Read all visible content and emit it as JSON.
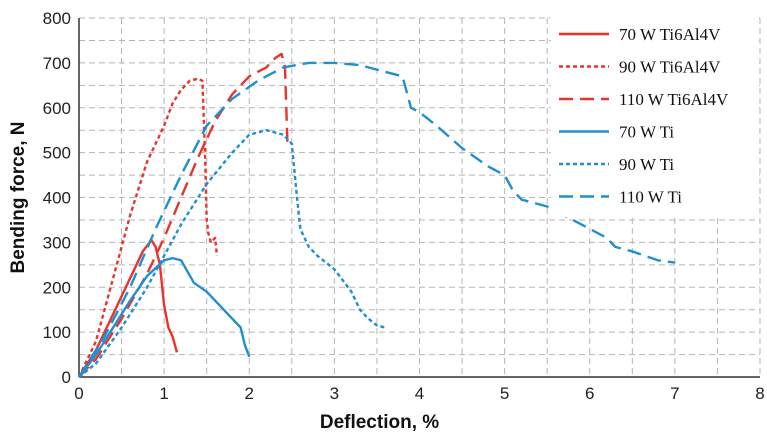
{
  "chart_data": {
    "type": "line",
    "title": "",
    "xlabel": "Deflection, %",
    "ylabel": "Bending force, N",
    "xlim": [
      0,
      8
    ],
    "ylim": [
      0,
      800
    ],
    "xticks": [
      "0",
      "1",
      "2",
      "3",
      "4",
      "5",
      "6",
      "7",
      "8"
    ],
    "yticks": [
      "0",
      "100",
      "200",
      "300",
      "400",
      "500",
      "600",
      "700",
      "800"
    ],
    "grid": true,
    "legend_position": "top-right",
    "series": [
      {
        "name": "70 W Ti6Al4V",
        "color": "#e8342c",
        "dash": "solid",
        "x": [
          0,
          0.2,
          0.4,
          0.6,
          0.75,
          0.85,
          0.9,
          0.95,
          1.0,
          1.05,
          1.1,
          1.15
        ],
        "y": [
          0,
          60,
          140,
          220,
          280,
          305,
          290,
          250,
          160,
          110,
          90,
          55
        ]
      },
      {
        "name": "90 W Ti6Al4V",
        "color": "#e8342c",
        "dash": "short",
        "x": [
          0,
          0.2,
          0.4,
          0.6,
          0.8,
          0.9,
          1.0,
          1.1,
          1.2,
          1.3,
          1.4,
          1.45,
          1.48,
          1.5,
          1.52,
          1.55,
          1.6,
          1.62
        ],
        "y": [
          0,
          80,
          220,
          360,
          480,
          520,
          560,
          610,
          640,
          660,
          665,
          660,
          500,
          350,
          320,
          300,
          310,
          270
        ]
      },
      {
        "name": "110 W Ti6Al4V",
        "color": "#e8342c",
        "dash": "long",
        "x": [
          0,
          0.2,
          0.5,
          0.8,
          1.0,
          1.2,
          1.4,
          1.6,
          1.8,
          2.0,
          2.2,
          2.3,
          2.38,
          2.42,
          2.45
        ],
        "y": [
          0,
          40,
          130,
          230,
          310,
          400,
          490,
          570,
          630,
          670,
          690,
          710,
          720,
          690,
          510
        ]
      },
      {
        "name": "70 W Ti",
        "color": "#1f8fd1",
        "dash": "solid",
        "x": [
          0,
          0.2,
          0.4,
          0.6,
          0.8,
          1.0,
          1.1,
          1.2,
          1.35,
          1.5,
          1.7,
          1.9,
          1.95,
          2.0
        ],
        "y": [
          0,
          50,
          110,
          170,
          225,
          260,
          265,
          260,
          210,
          190,
          150,
          110,
          70,
          45
        ]
      },
      {
        "name": "90 W Ti",
        "color": "#1f8fd1",
        "dash": "short",
        "x": [
          0,
          0.2,
          0.5,
          0.8,
          1.0,
          1.2,
          1.5,
          1.8,
          2.0,
          2.2,
          2.4,
          2.5,
          2.55,
          2.6,
          2.7,
          2.8,
          3.0,
          3.2,
          3.3,
          3.4,
          3.5,
          3.6
        ],
        "y": [
          0,
          30,
          110,
          200,
          270,
          340,
          430,
          500,
          540,
          550,
          540,
          520,
          420,
          330,
          290,
          270,
          240,
          190,
          150,
          130,
          115,
          110
        ]
      },
      {
        "name": "110 W Ti",
        "color": "#1f8fd1",
        "dash": "long",
        "x": [
          0,
          0.3,
          0.6,
          0.9,
          1.2,
          1.5,
          1.8,
          2.1,
          2.4,
          2.7,
          3.0,
          3.3,
          3.6,
          3.8,
          3.9,
          4.0,
          4.2,
          4.5,
          4.8,
          5.0,
          5.1,
          5.2,
          5.5,
          5.8,
          6.0,
          6.2,
          6.3,
          6.5,
          6.8,
          7.0
        ],
        "y": [
          0,
          90,
          200,
          330,
          450,
          560,
          620,
          660,
          690,
          700,
          700,
          695,
          680,
          670,
          600,
          590,
          560,
          510,
          470,
          450,
          415,
          395,
          380,
          350,
          330,
          310,
          290,
          280,
          260,
          255
        ]
      }
    ]
  }
}
